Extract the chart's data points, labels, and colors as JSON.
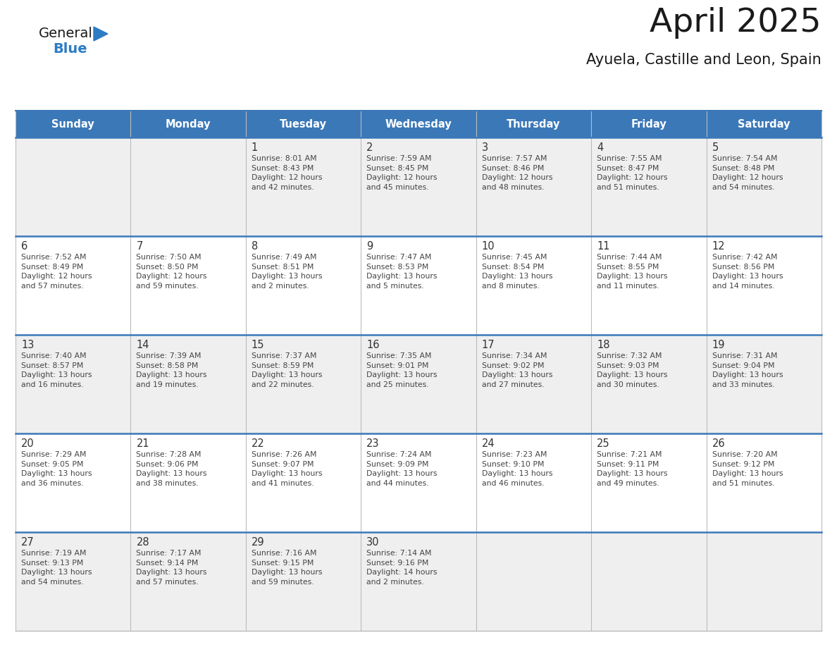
{
  "title": "April 2025",
  "subtitle": "Ayuela, Castille and Leon, Spain",
  "header_bg": "#3B78B8",
  "header_text_color": "#FFFFFF",
  "cell_bg_odd": "#EFEFEF",
  "cell_bg_even": "#FFFFFF",
  "day_number_color": "#333333",
  "day_text_color": "#444444",
  "grid_line_color": "#BBBBBB",
  "header_line_color": "#2B5FA0",
  "separator_line_color": "#3B78B8",
  "days_of_week": [
    "Sunday",
    "Monday",
    "Tuesday",
    "Wednesday",
    "Thursday",
    "Friday",
    "Saturday"
  ],
  "weeks": [
    [
      {
        "day": "",
        "text": ""
      },
      {
        "day": "",
        "text": ""
      },
      {
        "day": "1",
        "text": "Sunrise: 8:01 AM\nSunset: 8:43 PM\nDaylight: 12 hours\nand 42 minutes."
      },
      {
        "day": "2",
        "text": "Sunrise: 7:59 AM\nSunset: 8:45 PM\nDaylight: 12 hours\nand 45 minutes."
      },
      {
        "day": "3",
        "text": "Sunrise: 7:57 AM\nSunset: 8:46 PM\nDaylight: 12 hours\nand 48 minutes."
      },
      {
        "day": "4",
        "text": "Sunrise: 7:55 AM\nSunset: 8:47 PM\nDaylight: 12 hours\nand 51 minutes."
      },
      {
        "day": "5",
        "text": "Sunrise: 7:54 AM\nSunset: 8:48 PM\nDaylight: 12 hours\nand 54 minutes."
      }
    ],
    [
      {
        "day": "6",
        "text": "Sunrise: 7:52 AM\nSunset: 8:49 PM\nDaylight: 12 hours\nand 57 minutes."
      },
      {
        "day": "7",
        "text": "Sunrise: 7:50 AM\nSunset: 8:50 PM\nDaylight: 12 hours\nand 59 minutes."
      },
      {
        "day": "8",
        "text": "Sunrise: 7:49 AM\nSunset: 8:51 PM\nDaylight: 13 hours\nand 2 minutes."
      },
      {
        "day": "9",
        "text": "Sunrise: 7:47 AM\nSunset: 8:53 PM\nDaylight: 13 hours\nand 5 minutes."
      },
      {
        "day": "10",
        "text": "Sunrise: 7:45 AM\nSunset: 8:54 PM\nDaylight: 13 hours\nand 8 minutes."
      },
      {
        "day": "11",
        "text": "Sunrise: 7:44 AM\nSunset: 8:55 PM\nDaylight: 13 hours\nand 11 minutes."
      },
      {
        "day": "12",
        "text": "Sunrise: 7:42 AM\nSunset: 8:56 PM\nDaylight: 13 hours\nand 14 minutes."
      }
    ],
    [
      {
        "day": "13",
        "text": "Sunrise: 7:40 AM\nSunset: 8:57 PM\nDaylight: 13 hours\nand 16 minutes."
      },
      {
        "day": "14",
        "text": "Sunrise: 7:39 AM\nSunset: 8:58 PM\nDaylight: 13 hours\nand 19 minutes."
      },
      {
        "day": "15",
        "text": "Sunrise: 7:37 AM\nSunset: 8:59 PM\nDaylight: 13 hours\nand 22 minutes."
      },
      {
        "day": "16",
        "text": "Sunrise: 7:35 AM\nSunset: 9:01 PM\nDaylight: 13 hours\nand 25 minutes."
      },
      {
        "day": "17",
        "text": "Sunrise: 7:34 AM\nSunset: 9:02 PM\nDaylight: 13 hours\nand 27 minutes."
      },
      {
        "day": "18",
        "text": "Sunrise: 7:32 AM\nSunset: 9:03 PM\nDaylight: 13 hours\nand 30 minutes."
      },
      {
        "day": "19",
        "text": "Sunrise: 7:31 AM\nSunset: 9:04 PM\nDaylight: 13 hours\nand 33 minutes."
      }
    ],
    [
      {
        "day": "20",
        "text": "Sunrise: 7:29 AM\nSunset: 9:05 PM\nDaylight: 13 hours\nand 36 minutes."
      },
      {
        "day": "21",
        "text": "Sunrise: 7:28 AM\nSunset: 9:06 PM\nDaylight: 13 hours\nand 38 minutes."
      },
      {
        "day": "22",
        "text": "Sunrise: 7:26 AM\nSunset: 9:07 PM\nDaylight: 13 hours\nand 41 minutes."
      },
      {
        "day": "23",
        "text": "Sunrise: 7:24 AM\nSunset: 9:09 PM\nDaylight: 13 hours\nand 44 minutes."
      },
      {
        "day": "24",
        "text": "Sunrise: 7:23 AM\nSunset: 9:10 PM\nDaylight: 13 hours\nand 46 minutes."
      },
      {
        "day": "25",
        "text": "Sunrise: 7:21 AM\nSunset: 9:11 PM\nDaylight: 13 hours\nand 49 minutes."
      },
      {
        "day": "26",
        "text": "Sunrise: 7:20 AM\nSunset: 9:12 PM\nDaylight: 13 hours\nand 51 minutes."
      }
    ],
    [
      {
        "day": "27",
        "text": "Sunrise: 7:19 AM\nSunset: 9:13 PM\nDaylight: 13 hours\nand 54 minutes."
      },
      {
        "day": "28",
        "text": "Sunrise: 7:17 AM\nSunset: 9:14 PM\nDaylight: 13 hours\nand 57 minutes."
      },
      {
        "day": "29",
        "text": "Sunrise: 7:16 AM\nSunset: 9:15 PM\nDaylight: 13 hours\nand 59 minutes."
      },
      {
        "day": "30",
        "text": "Sunrise: 7:14 AM\nSunset: 9:16 PM\nDaylight: 14 hours\nand 2 minutes."
      },
      {
        "day": "",
        "text": ""
      },
      {
        "day": "",
        "text": ""
      },
      {
        "day": "",
        "text": ""
      }
    ]
  ],
  "logo_general_color": "#1A1A1A",
  "logo_blue_color": "#2E7CC4",
  "logo_triangle_color": "#2E7CC4",
  "title_color": "#1A1A1A",
  "subtitle_color": "#1A1A1A"
}
